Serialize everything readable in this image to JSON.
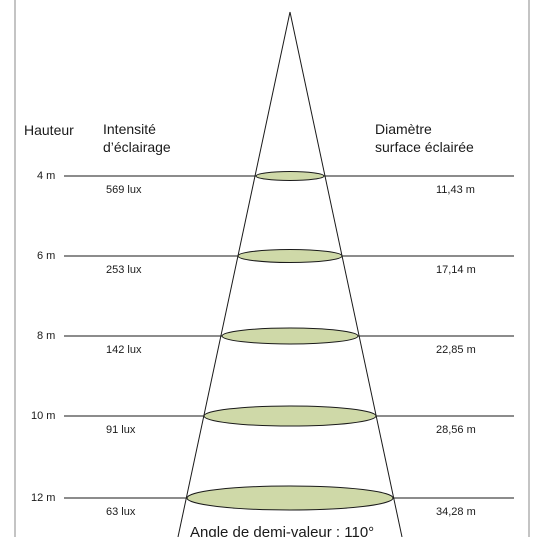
{
  "headers": {
    "hauteur": "Hauteur",
    "intensite_line1": "Intensité",
    "intensite_line2": "d’éclairage",
    "diametre_line1": "Diamètre",
    "diametre_line2": "surface éclairée"
  },
  "rows": [
    {
      "height": "4 m",
      "lux": "569 lux",
      "diameter": "11,43 m"
    },
    {
      "height": "6 m",
      "lux": "253 lux",
      "diameter": "17,14 m"
    },
    {
      "height": "8 m",
      "lux": "142 lux",
      "diameter": "22,85 m"
    },
    {
      "height": "10 m",
      "lux": "91 lux",
      "diameter": "28,56 m"
    },
    {
      "height": "12 m",
      "lux": "63 lux",
      "diameter": "34,28 m"
    }
  ],
  "caption": "Angle de demi-valeur : 110°",
  "colors": {
    "ellipse_fill": "#cfd9a8",
    "line": "#1a1a1a",
    "border": "#888888"
  }
}
